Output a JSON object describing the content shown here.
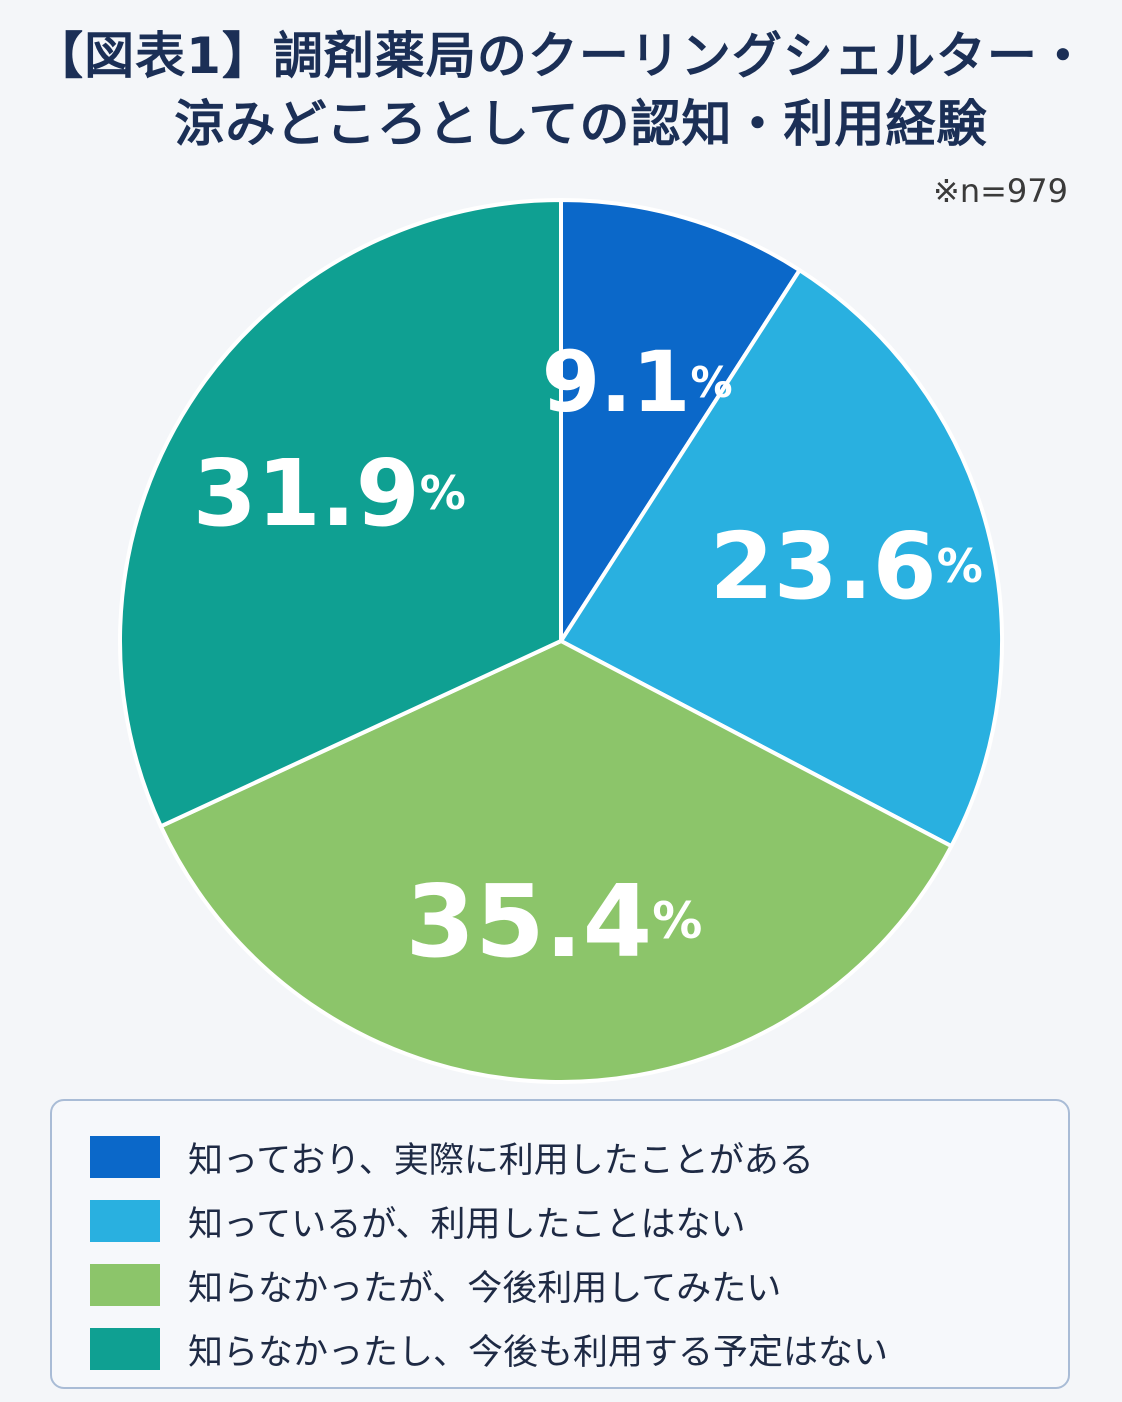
{
  "header": {
    "title_line1": "【図表1】調剤薬局のクーリングシェルター・",
    "title_line2": "涼みどころとしての認知・利用経験",
    "note": "※n=979"
  },
  "chart_data": {
    "type": "pie",
    "title": "【図表1】調剤薬局のクーリングシェルター・涼みどころとしての認知・利用経験",
    "n": 979,
    "start_angle": "12 o'clock",
    "direction": "clockwise",
    "legend_position": "bottom",
    "slices": [
      {
        "label": "知っており、実際に利用したことがある",
        "value": 9.1,
        "value_text": "9.1",
        "color": "#0b68c9"
      },
      {
        "label": "知っているが、利用したことはない",
        "value": 23.6,
        "value_text": "23.6",
        "color": "#29b0e0"
      },
      {
        "label": "知らなかったが、今後利用してみたい",
        "value": 35.4,
        "value_text": "35.4",
        "color": "#8cc56a"
      },
      {
        "label": "知らなかったし、今後も利用する予定はない",
        "value": 31.9,
        "value_text": "31.9",
        "color": "#0fa092"
      }
    ],
    "unit": "%"
  }
}
